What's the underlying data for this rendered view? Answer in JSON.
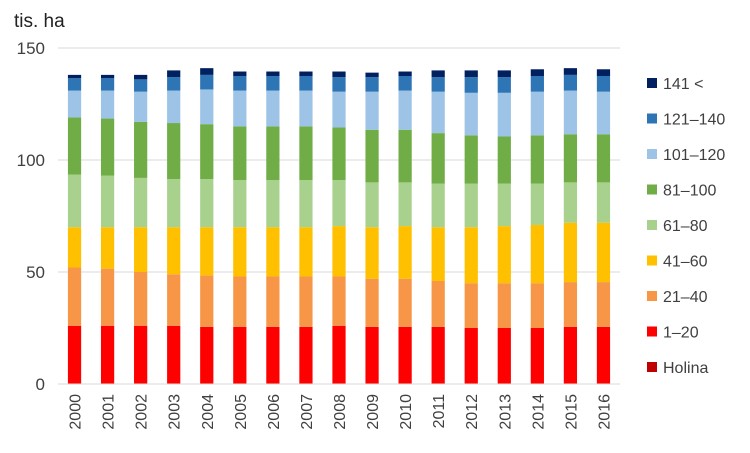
{
  "chart_data": {
    "type": "bar",
    "stacked": true,
    "ylabel": "tis. ha",
    "xlabel": "",
    "ylim": [
      0,
      150
    ],
    "yticks": [
      0,
      50,
      100,
      150
    ],
    "grid": true,
    "legend_position": "right",
    "categories": [
      "2000",
      "2001",
      "2002",
      "2003",
      "2004",
      "2005",
      "2006",
      "2007",
      "2008",
      "2009",
      "2010",
      "2011",
      "2012",
      "2013",
      "2014",
      "2015",
      "2016"
    ],
    "series": [
      {
        "name": "Holina",
        "color": "#c00000",
        "values": [
          0,
          0,
          0,
          0,
          0,
          0,
          0,
          0,
          0,
          0,
          0,
          0,
          0,
          0,
          0,
          0,
          0
        ]
      },
      {
        "name": "1–20",
        "color": "#ff0000",
        "values": [
          26,
          26,
          26,
          26,
          25.5,
          25.5,
          25.5,
          25.5,
          26,
          25.5,
          25.5,
          25.5,
          25,
          25,
          25,
          25.5,
          25.5
        ]
      },
      {
        "name": "21–40",
        "color": "#f79646",
        "values": [
          26,
          25.5,
          24,
          23,
          23,
          22.5,
          22.5,
          22.5,
          22,
          21.5,
          21.5,
          20.5,
          20,
          20,
          20,
          20,
          20
        ]
      },
      {
        "name": "41–60",
        "color": "#ffc000",
        "values": [
          18,
          18.5,
          20,
          21,
          21.5,
          22,
          22,
          22,
          22.5,
          23,
          23.5,
          24,
          25,
          25.5,
          26,
          26.5,
          26.5
        ]
      },
      {
        "name": "61–80",
        "color": "#a9d18e",
        "values": [
          23.5,
          23,
          22,
          21.5,
          21.5,
          21,
          21,
          21,
          20.5,
          20,
          19.5,
          19.5,
          19.5,
          19,
          18.5,
          18,
          18
        ]
      },
      {
        "name": "81–100",
        "color": "#70ad47",
        "values": [
          25.5,
          25.5,
          25,
          25,
          24.5,
          24,
          24,
          24,
          23.5,
          23.5,
          23.5,
          22.5,
          21.5,
          21,
          21.5,
          21.5,
          21.5
        ]
      },
      {
        "name": "101–120",
        "color": "#9dc3e6",
        "values": [
          12,
          12.5,
          13.5,
          14.5,
          15.5,
          16,
          16,
          16,
          16,
          17,
          17.5,
          18.5,
          19,
          19.5,
          19.5,
          19.5,
          19
        ]
      },
      {
        "name": "121–140",
        "color": "#2e75b6",
        "values": [
          5.5,
          5.5,
          5.5,
          6,
          6.5,
          6.5,
          6.5,
          6.5,
          6.5,
          6.5,
          6.5,
          6.5,
          7,
          7,
          7,
          7,
          7
        ]
      },
      {
        "name": "141 <",
        "color": "#002060",
        "values": [
          1.5,
          1.5,
          2,
          3,
          3,
          2,
          2,
          2,
          2.5,
          2,
          2,
          3,
          3,
          3,
          3,
          3,
          3
        ]
      }
    ]
  }
}
